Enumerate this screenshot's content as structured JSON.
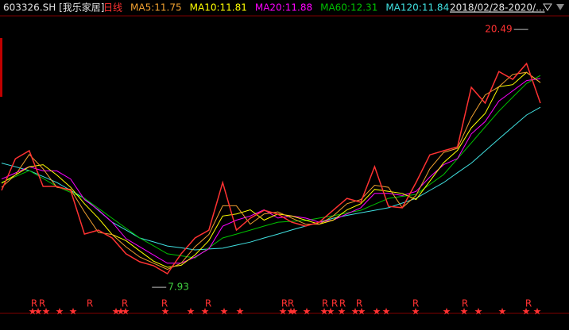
{
  "chart_data": {
    "type": "line",
    "symbol": "603326.SH [我乐家居]",
    "date_range": "2018/02/28-2020/...",
    "ylim": [
      7.43,
      21.23
    ],
    "categories": [
      null,
      null,
      null,
      null,
      null,
      null,
      null,
      null,
      null,
      null,
      null,
      null,
      null,
      null,
      null,
      null,
      null,
      null,
      null,
      null,
      null,
      null,
      null,
      null,
      null,
      null,
      null,
      null,
      null,
      null,
      null,
      null,
      null,
      null,
      null,
      null,
      null,
      null,
      null,
      null
    ],
    "series": [
      {
        "name": "日线",
        "color": "#ff3232",
        "values": [
          12.65,
          14.19,
          14.58,
          12.84,
          12.84,
          12.65,
          10.52,
          10.71,
          10.33,
          9.56,
          9.17,
          8.98,
          8.59,
          9.56,
          10.33,
          10.71,
          13.03,
          10.71,
          11.29,
          11.68,
          11.49,
          11.1,
          10.91,
          11.1,
          11.68,
          12.26,
          12.07,
          13.81,
          11.87,
          11.8,
          13.03,
          14.38,
          14.58,
          14.77,
          17.67,
          16.9,
          18.44,
          18.06,
          18.83,
          16.9
        ]
      },
      {
        "name": "MA5:",
        "current": 11.75,
        "color": "#f0a030",
        "values": [
          12.8,
          13.4,
          14.4,
          13.7,
          12.8,
          12.7,
          11.6,
          10.6,
          10.5,
          9.9,
          9.4,
          9.1,
          8.8,
          9.1,
          9.9,
          10.5,
          11.9,
          11.9,
          11.0,
          11.5,
          11.6,
          11.3,
          11.0,
          11.0,
          11.4,
          12.0,
          12.2,
          12.9,
          12.8,
          11.8,
          12.4,
          13.7,
          14.5,
          14.7,
          16.2,
          17.3,
          17.7,
          18.3,
          18.4,
          17.9
        ]
      },
      {
        "name": "MA10:",
        "current": 11.81,
        "color": "#ffff00",
        "values": [
          13.0,
          13.4,
          13.8,
          13.9,
          13.4,
          12.8,
          12.0,
          11.3,
          10.5,
          10.2,
          9.7,
          9.2,
          8.9,
          9.0,
          9.5,
          10.2,
          11.4,
          11.5,
          11.7,
          11.2,
          11.5,
          11.4,
          11.2,
          11.0,
          11.2,
          11.7,
          12.0,
          12.7,
          12.6,
          12.5,
          12.2,
          13.1,
          14.0,
          14.6,
          15.7,
          16.4,
          17.7,
          17.8,
          18.4,
          17.9
        ]
      },
      {
        "name": "MA20:",
        "current": 11.88,
        "color": "#ff00ff",
        "values": [
          13.2,
          13.5,
          13.8,
          13.6,
          13.6,
          13.2,
          12.2,
          11.7,
          11.1,
          10.3,
          9.9,
          9.5,
          9.1,
          9.1,
          9.4,
          9.8,
          10.9,
          11.2,
          11.4,
          11.7,
          11.3,
          11.4,
          11.3,
          11.1,
          11.2,
          11.5,
          11.8,
          12.5,
          12.5,
          12.4,
          12.6,
          13.3,
          13.9,
          14.2,
          15.4,
          16.0,
          17.0,
          17.5,
          18.0,
          18.1
        ]
      },
      {
        "name": "MA60:",
        "current": 12.31,
        "color": "#00c000",
        "values": [
          13.03,
          13.32,
          13.61,
          13.23,
          12.84,
          12.55,
          12.26,
          11.78,
          11.29,
          10.81,
          10.33,
          9.95,
          9.56,
          9.46,
          9.36,
          9.85,
          10.33,
          10.52,
          10.71,
          10.91,
          11.1,
          11.14,
          11.18,
          11.3,
          11.41,
          11.55,
          11.68,
          11.97,
          12.26,
          12.36,
          12.45,
          12.94,
          13.42,
          14.19,
          14.96,
          15.74,
          16.51,
          17.19,
          17.86,
          18.25
        ]
      },
      {
        "name": "MA120:",
        "current": 11.84,
        "color": "#40e0e0",
        "values": [
          13.98,
          13.8,
          13.61,
          13.32,
          13.03,
          12.65,
          12.26,
          11.68,
          11.1,
          10.72,
          10.33,
          10.14,
          9.94,
          9.85,
          9.75,
          9.79,
          9.83,
          9.98,
          10.13,
          10.33,
          10.52,
          10.72,
          10.91,
          11.1,
          11.29,
          11.43,
          11.56,
          11.68,
          11.8,
          12.03,
          12.26,
          12.65,
          13.03,
          13.51,
          13.98,
          14.57,
          15.16,
          15.74,
          16.32,
          16.7
        ]
      }
    ],
    "low": 7.93,
    "high": 20.49,
    "markers": {
      "r": "R",
      "star": "★"
    }
  }
}
